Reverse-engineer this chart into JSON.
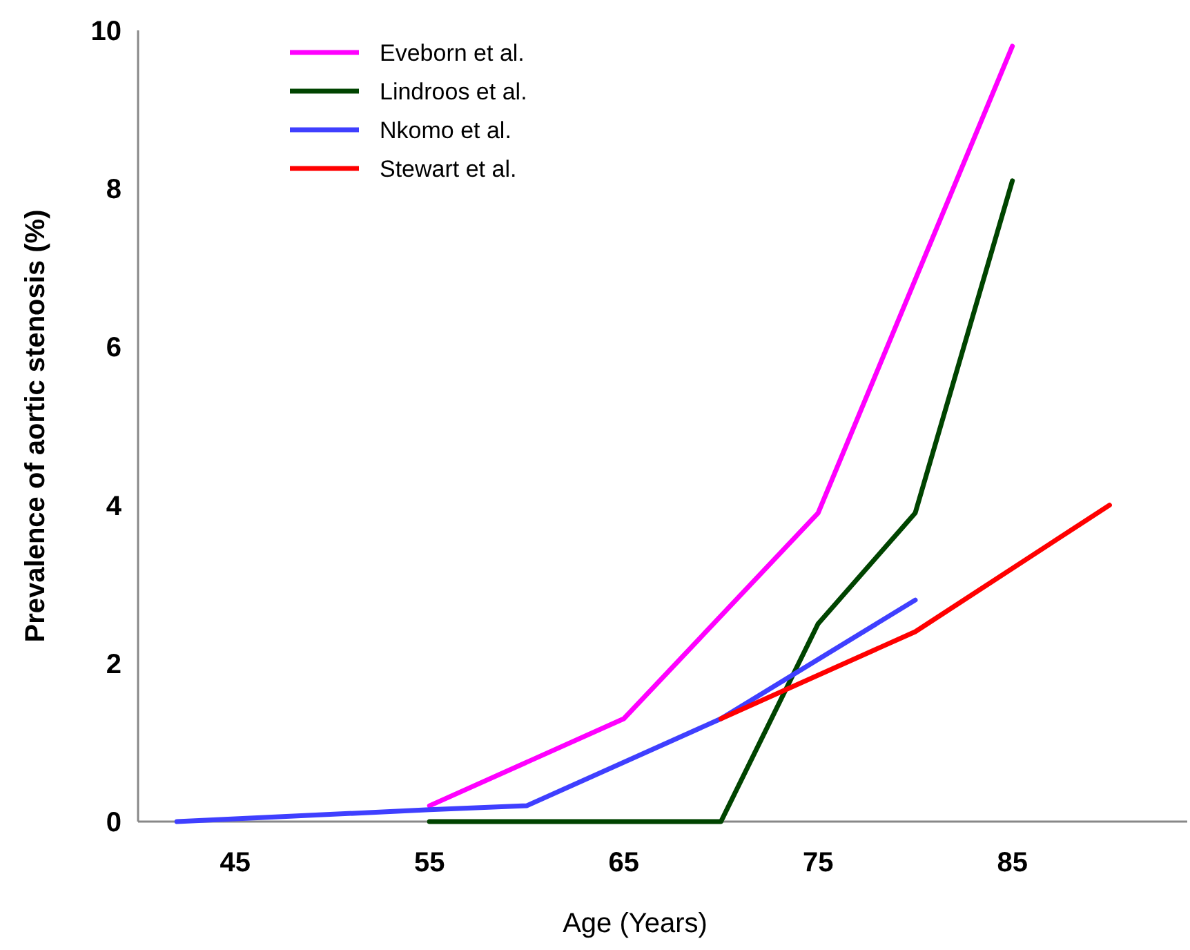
{
  "chart_data": {
    "type": "line",
    "xlabel": "Age (Years)",
    "ylabel": "Prevalence of aortic stenosis (%)",
    "xlim": [
      40,
      94
    ],
    "xticks": [
      45,
      55,
      65,
      75,
      85
    ],
    "ylim": [
      0,
      10
    ],
    "yticks": [
      0,
      2,
      4,
      6,
      8,
      10
    ],
    "grid": false,
    "legend": "top left",
    "marker": "none",
    "line_style": "solid",
    "series": [
      {
        "name": "Eveborn et al.",
        "color": "#ff00ff",
        "x": [
          55,
          65,
          75,
          85
        ],
        "values": [
          0.2,
          1.3,
          3.9,
          9.8
        ]
      },
      {
        "name": "Lindroos et al.",
        "color": "#004400",
        "x": [
          55,
          70,
          75,
          80,
          85
        ],
        "values": [
          0,
          0,
          2.5,
          3.9,
          8.1
        ]
      },
      {
        "name": "Nkomo et al.",
        "color": "#3f3fff",
        "x": [
          42,
          55,
          60,
          70,
          80
        ],
        "values": [
          0,
          0.15,
          0.2,
          1.3,
          2.8
        ]
      },
      {
        "name": "Stewart et al.",
        "color": "#ff0000",
        "x": [
          70,
          80,
          90
        ],
        "values": [
          1.3,
          2.4,
          4.0
        ]
      }
    ]
  }
}
